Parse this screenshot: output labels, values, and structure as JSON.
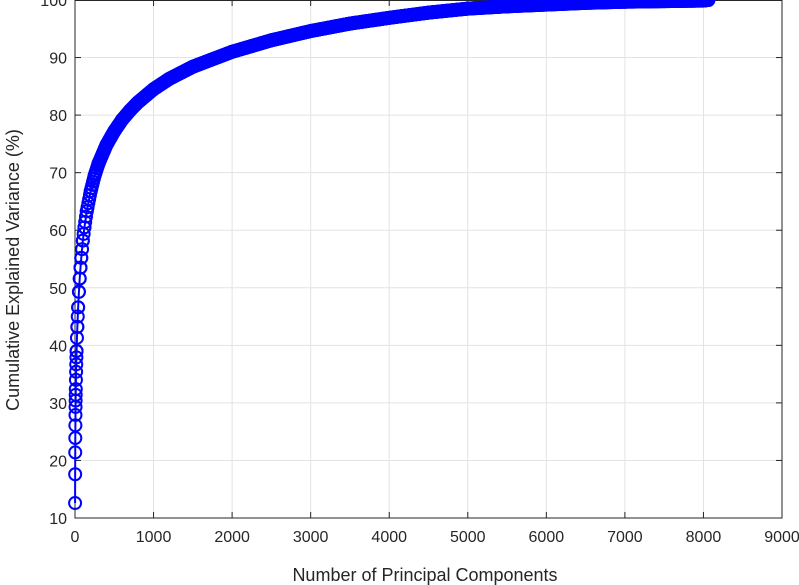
{
  "chart_data": {
    "type": "scatter",
    "title": "",
    "xlabel": "Number of Principal Components",
    "ylabel": "Cumulative Explained Variance (%)",
    "xlim": [
      0,
      9000
    ],
    "ylim": [
      10,
      100
    ],
    "xticks": [
      "0",
      "1000",
      "2000",
      "3000",
      "4000",
      "5000",
      "6000",
      "7000",
      "8000",
      "9000"
    ],
    "yticks": [
      "10",
      "20",
      "30",
      "40",
      "50",
      "60",
      "70",
      "80",
      "90",
      "100"
    ],
    "grid": true,
    "marker": "circle",
    "line": true,
    "colors": {
      "series": "#0000ff",
      "grid": "#e3e3e3",
      "axis": "#262626"
    },
    "series": [
      {
        "x": [
          1,
          2,
          3,
          4,
          5,
          6,
          7,
          8,
          9,
          10,
          12,
          14,
          16,
          18,
          20,
          25,
          30,
          35,
          40,
          50,
          60,
          70,
          80,
          100,
          120,
          150,
          200,
          250,
          300,
          400,
          500,
          600,
          700,
          800,
          1000,
          1200,
          1500,
          2000,
          2500,
          3000,
          3500,
          4000,
          4500,
          5000,
          5500,
          6000,
          6500,
          7000,
          7500,
          8000,
          8064
        ],
        "y": [
          12.6,
          17.6,
          21.4,
          23.9,
          26.1,
          27.9,
          29.3,
          30.4,
          31.4,
          32.4,
          34.0,
          35.4,
          36.7,
          37.9,
          39.0,
          41.3,
          43.2,
          45.0,
          46.6,
          49.3,
          51.6,
          53.5,
          55.2,
          58.2,
          60.5,
          63.3,
          66.8,
          69.5,
          71.6,
          74.8,
          77.2,
          79.2,
          80.8,
          82.2,
          84.5,
          86.3,
          88.4,
          91.0,
          93.0,
          94.6,
          95.9,
          96.9,
          97.8,
          98.5,
          98.9,
          99.2,
          99.5,
          99.7,
          99.8,
          99.9,
          100.0
        ]
      }
    ]
  }
}
